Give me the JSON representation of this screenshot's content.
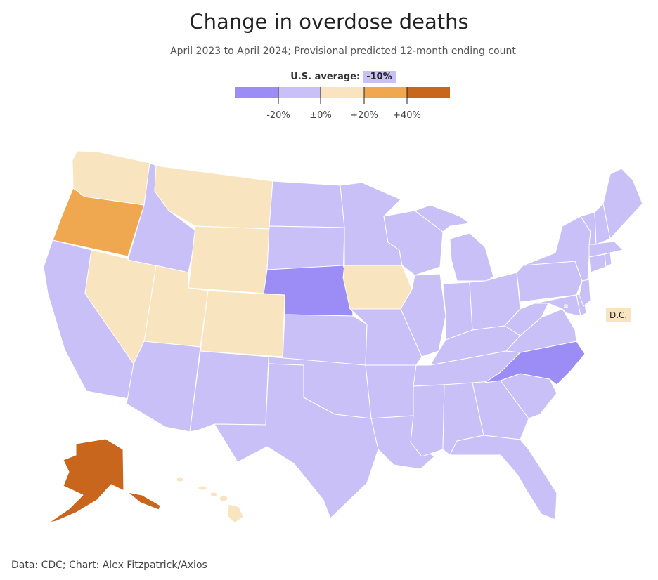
{
  "title": "Change in overdose deaths",
  "subtitle": "April 2023 to April 2024; Provisional predicted 12-month ending count",
  "us_average": {
    "label": "U.S. average:",
    "value": "-10%"
  },
  "legend": {
    "bins": [
      {
        "color": "#9b8df5"
      },
      {
        "color": "#c9c0f8"
      },
      {
        "color": "#f9e4c0"
      },
      {
        "color": "#f0a850"
      },
      {
        "color": "#c8661e"
      }
    ],
    "ticks": [
      "-20%",
      "±0%",
      "+20%",
      "+40%"
    ]
  },
  "colors": {
    "strong_decrease": "#9b8df5",
    "decrease": "#c9c0f8",
    "increase": "#f9e4c0",
    "moderate_increase": "#f0a850",
    "large_increase": "#c8661e"
  },
  "chart_data": {
    "type": "choropleth",
    "bins": [
      {
        "range": "below -20%",
        "color_key": "strong_decrease",
        "states": [
          "Nebraska",
          "North Carolina"
        ]
      },
      {
        "range": "-20% to 0%",
        "color_key": "decrease",
        "states": [
          "California",
          "Arizona",
          "New Mexico",
          "Idaho",
          "North Dakota",
          "South Dakota",
          "Kansas",
          "Oklahoma",
          "Texas",
          "Minnesota",
          "Missouri",
          "Arkansas",
          "Louisiana",
          "Wisconsin",
          "Illinois",
          "Michigan",
          "Indiana",
          "Ohio",
          "Kentucky",
          "Tennessee",
          "Mississippi",
          "Alabama",
          "Georgia",
          "Florida",
          "South Carolina",
          "Virginia",
          "West Virginia",
          "Pennsylvania",
          "New York",
          "Maryland",
          "Delaware",
          "New Jersey",
          "Connecticut",
          "Rhode Island",
          "Massachusetts",
          "Vermont",
          "New Hampshire",
          "Maine"
        ]
      },
      {
        "range": "0% to +20%",
        "color_key": "increase",
        "states": [
          "Washington",
          "Montana",
          "Wyoming",
          "Nevada",
          "Utah",
          "Colorado",
          "Iowa",
          "Hawaii",
          "D.C."
        ]
      },
      {
        "range": "+20% to +40%",
        "color_key": "moderate_increase",
        "states": [
          "Oregon"
        ]
      },
      {
        "range": "above +40%",
        "color_key": "large_increase",
        "states": [
          "Alaska"
        ]
      }
    ]
  },
  "dc_label": "D.C.",
  "source": "Data: CDC; Chart: Alex Fitzpatrick/Axios"
}
